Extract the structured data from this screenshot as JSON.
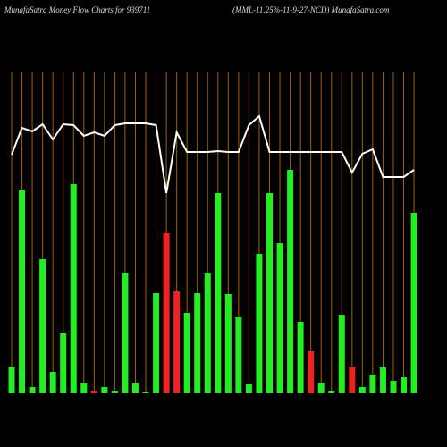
{
  "chart_data": {
    "type": "bar",
    "title": "MunafaSatra  Money Flow  Charts for 939711",
    "subtitle": "(MML-11.25%-11-9-27-NCD) MunafaSatra.com",
    "ylim": [
      0,
      360
    ],
    "grid_color": "#a0600a",
    "series": [
      {
        "type": "bar",
        "values": [
          30,
          227,
          7,
          150,
          24,
          68,
          234,
          12,
          3,
          7,
          3,
          135,
          12,
          2,
          112,
          179,
          114,
          90,
          112,
          135,
          224,
          111,
          85,
          11,
          156,
          224,
          168,
          250,
          80,
          47,
          12,
          3,
          88,
          30,
          7,
          21,
          29,
          14,
          18,
          202
        ],
        "colors": [
          "#22ee22",
          "#22ee22",
          "#22ee22",
          "#22ee22",
          "#22ee22",
          "#22ee22",
          "#22ee22",
          "#22ee22",
          "#ee2222",
          "#22ee22",
          "#22ee22",
          "#22ee22",
          "#22ee22",
          "#22ee22",
          "#22ee22",
          "#ee2222",
          "#ee2222",
          "#22ee22",
          "#22ee22",
          "#22ee22",
          "#22ee22",
          "#22ee22",
          "#22ee22",
          "#22ee22",
          "#22ee22",
          "#22ee22",
          "#22ee22",
          "#22ee22",
          "#22ee22",
          "#ee2222",
          "#22ee22",
          "#22ee22",
          "#22ee22",
          "#ee2222",
          "#22ee22",
          "#22ee22",
          "#22ee22",
          "#22ee22",
          "#22ee22",
          "#22ee22"
        ]
      },
      {
        "type": "line",
        "color": "#ffffff",
        "values": [
          267,
          297,
          293,
          301,
          284,
          301,
          300,
          288,
          292,
          288,
          300,
          302,
          302,
          302,
          300,
          224,
          292,
          270,
          270,
          270,
          271,
          270,
          270,
          300,
          310,
          270,
          270,
          270,
          270,
          270,
          270,
          270,
          270,
          247,
          268,
          273,
          242,
          242,
          242,
          250
        ]
      }
    ]
  }
}
